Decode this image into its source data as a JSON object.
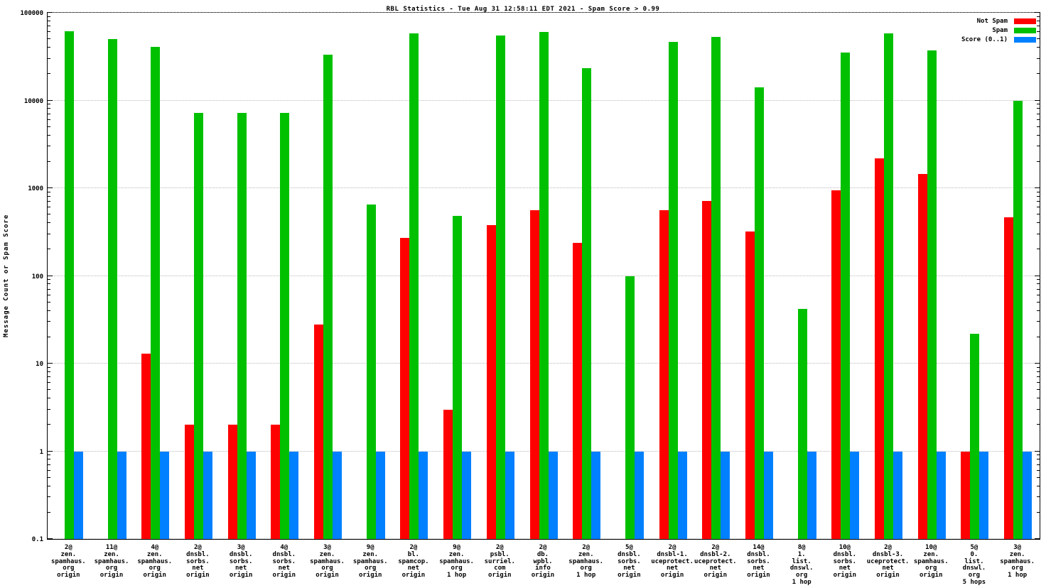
{
  "chart_data": {
    "type": "bar",
    "title": "RBL Statistics - Tue Aug 31 12:58:11 EDT 2021 - Spam Score > 0.99",
    "ylabel": "Message Count or Spam Score",
    "xlabel": "",
    "yscale": "log",
    "ylim": [
      0.1,
      100000
    ],
    "yticks": [
      0.1,
      1,
      10,
      100,
      1000,
      10000,
      100000
    ],
    "ytick_labels": [
      "0.1",
      "1",
      "10",
      "100",
      "1000",
      "10000",
      "100000"
    ],
    "grid": "dotted-horizontal-decades",
    "legend_position": "top-right-inside",
    "categories": [
      [
        "2@",
        "zen.",
        "spamhaus.",
        "org",
        "origin"
      ],
      [
        "11@",
        "zen.",
        "spamhaus.",
        "org",
        "origin"
      ],
      [
        "4@",
        "zen.",
        "spamhaus.",
        "org",
        "origin"
      ],
      [
        "2@",
        "dnsbl.",
        "sorbs.",
        "net",
        "origin"
      ],
      [
        "3@",
        "dnsbl.",
        "sorbs.",
        "net",
        "origin"
      ],
      [
        "4@",
        "dnsbl.",
        "sorbs.",
        "net",
        "origin"
      ],
      [
        "3@",
        "zen.",
        "spamhaus.",
        "org",
        "origin"
      ],
      [
        "9@",
        "zen.",
        "spamhaus.",
        "org",
        "origin"
      ],
      [
        "2@",
        "bl.",
        "spamcop.",
        "net",
        "origin"
      ],
      [
        "9@",
        "zen.",
        "spamhaus.",
        "org",
        "1 hop"
      ],
      [
        "2@",
        "psbl.",
        "surriel.",
        "com",
        "origin"
      ],
      [
        "2@",
        "db.",
        "wpbl.",
        "info",
        "origin"
      ],
      [
        "2@",
        "zen.",
        "spamhaus.",
        "org",
        "1 hop"
      ],
      [
        "5@",
        "dnsbl.",
        "sorbs.",
        "net",
        "origin"
      ],
      [
        "2@",
        "dnsbl-1.",
        "uceprotect.",
        "net",
        "origin"
      ],
      [
        "2@",
        "dnsbl-2.",
        "uceprotect.",
        "net",
        "origin"
      ],
      [
        "14@",
        "dnsbl.",
        "sorbs.",
        "net",
        "origin"
      ],
      [
        "8@",
        "1.",
        "list.",
        "dnswl.",
        "org",
        "1 hop"
      ],
      [
        "10@",
        "dnsbl.",
        "sorbs.",
        "net",
        "origin"
      ],
      [
        "2@",
        "dnsbl-3.",
        "uceprotect.",
        "net",
        "origin"
      ],
      [
        "10@",
        "zen.",
        "spamhaus.",
        "org",
        "origin"
      ],
      [
        "5@",
        "0.",
        "list.",
        "dnswl.",
        "org",
        "5 hops"
      ],
      [
        "3@",
        "zen.",
        "spamhaus.",
        "org",
        "1 hop"
      ]
    ],
    "series": [
      {
        "name": "Not Spam",
        "color": "#ff0000",
        "values": [
          null,
          null,
          13,
          2,
          2,
          2,
          28,
          null,
          270,
          3,
          380,
          560,
          240,
          null,
          560,
          720,
          320,
          null,
          950,
          2200,
          1450,
          1,
          470
        ]
      },
      {
        "name": "Spam",
        "color": "#00c000",
        "values": [
          62000,
          50000,
          41000,
          7200,
          7200,
          7200,
          33000,
          650,
          58000,
          480,
          55000,
          61000,
          23500,
          100,
          47000,
          53000,
          14000,
          42,
          35000,
          58000,
          37000,
          22,
          10000
        ]
      },
      {
        "name": "Score (0..1)",
        "color": "#0080ff",
        "values": [
          1,
          1,
          1,
          1,
          1,
          1,
          1,
          1,
          1,
          1,
          1,
          1,
          1,
          1,
          1,
          1,
          1,
          1,
          1,
          1,
          1,
          1,
          1
        ]
      }
    ]
  },
  "colors": {
    "background": "#ffffff",
    "axis": "#000000",
    "grid": "#b9b9b9",
    "not_spam": "#ff0000",
    "spam": "#00c000",
    "score": "#0080ff"
  }
}
